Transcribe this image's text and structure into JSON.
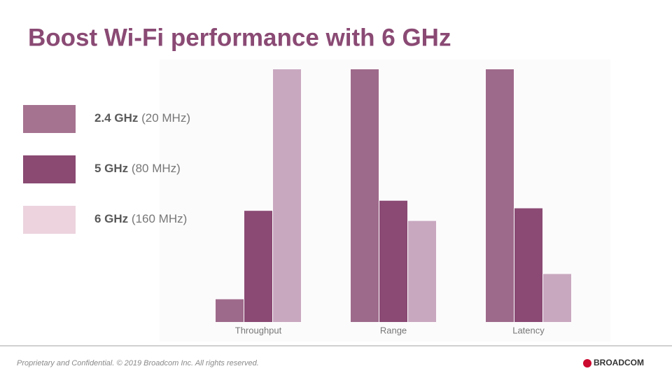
{
  "title": "Boost Wi-Fi performance with 6 GHz",
  "chart_data": {
    "type": "bar",
    "categories": [
      "Throughput",
      "Range",
      "Latency"
    ],
    "ylim": [
      0,
      100
    ],
    "series": [
      {
        "name": "2.4 GHz",
        "width": "(20 MHz)",
        "color": "#9e6a8b",
        "swatch_color": "#a5728f",
        "values": [
          9,
          100,
          100
        ]
      },
      {
        "name": "5 GHz",
        "width": "(80 MHz)",
        "color": "#8a4a74",
        "swatch_color": "#8a4a72",
        "values": [
          44,
          48,
          45
        ]
      },
      {
        "name": "6 GHz",
        "width": "(160 MHz)",
        "color": "#c8a8bf",
        "swatch_color": "#ecd3de",
        "values": [
          100,
          40,
          19
        ]
      }
    ]
  },
  "footer": "Proprietary and Confidential.  © 2019 Broadcom Inc.  All rights reserved.",
  "logo": "BROADCOM"
}
